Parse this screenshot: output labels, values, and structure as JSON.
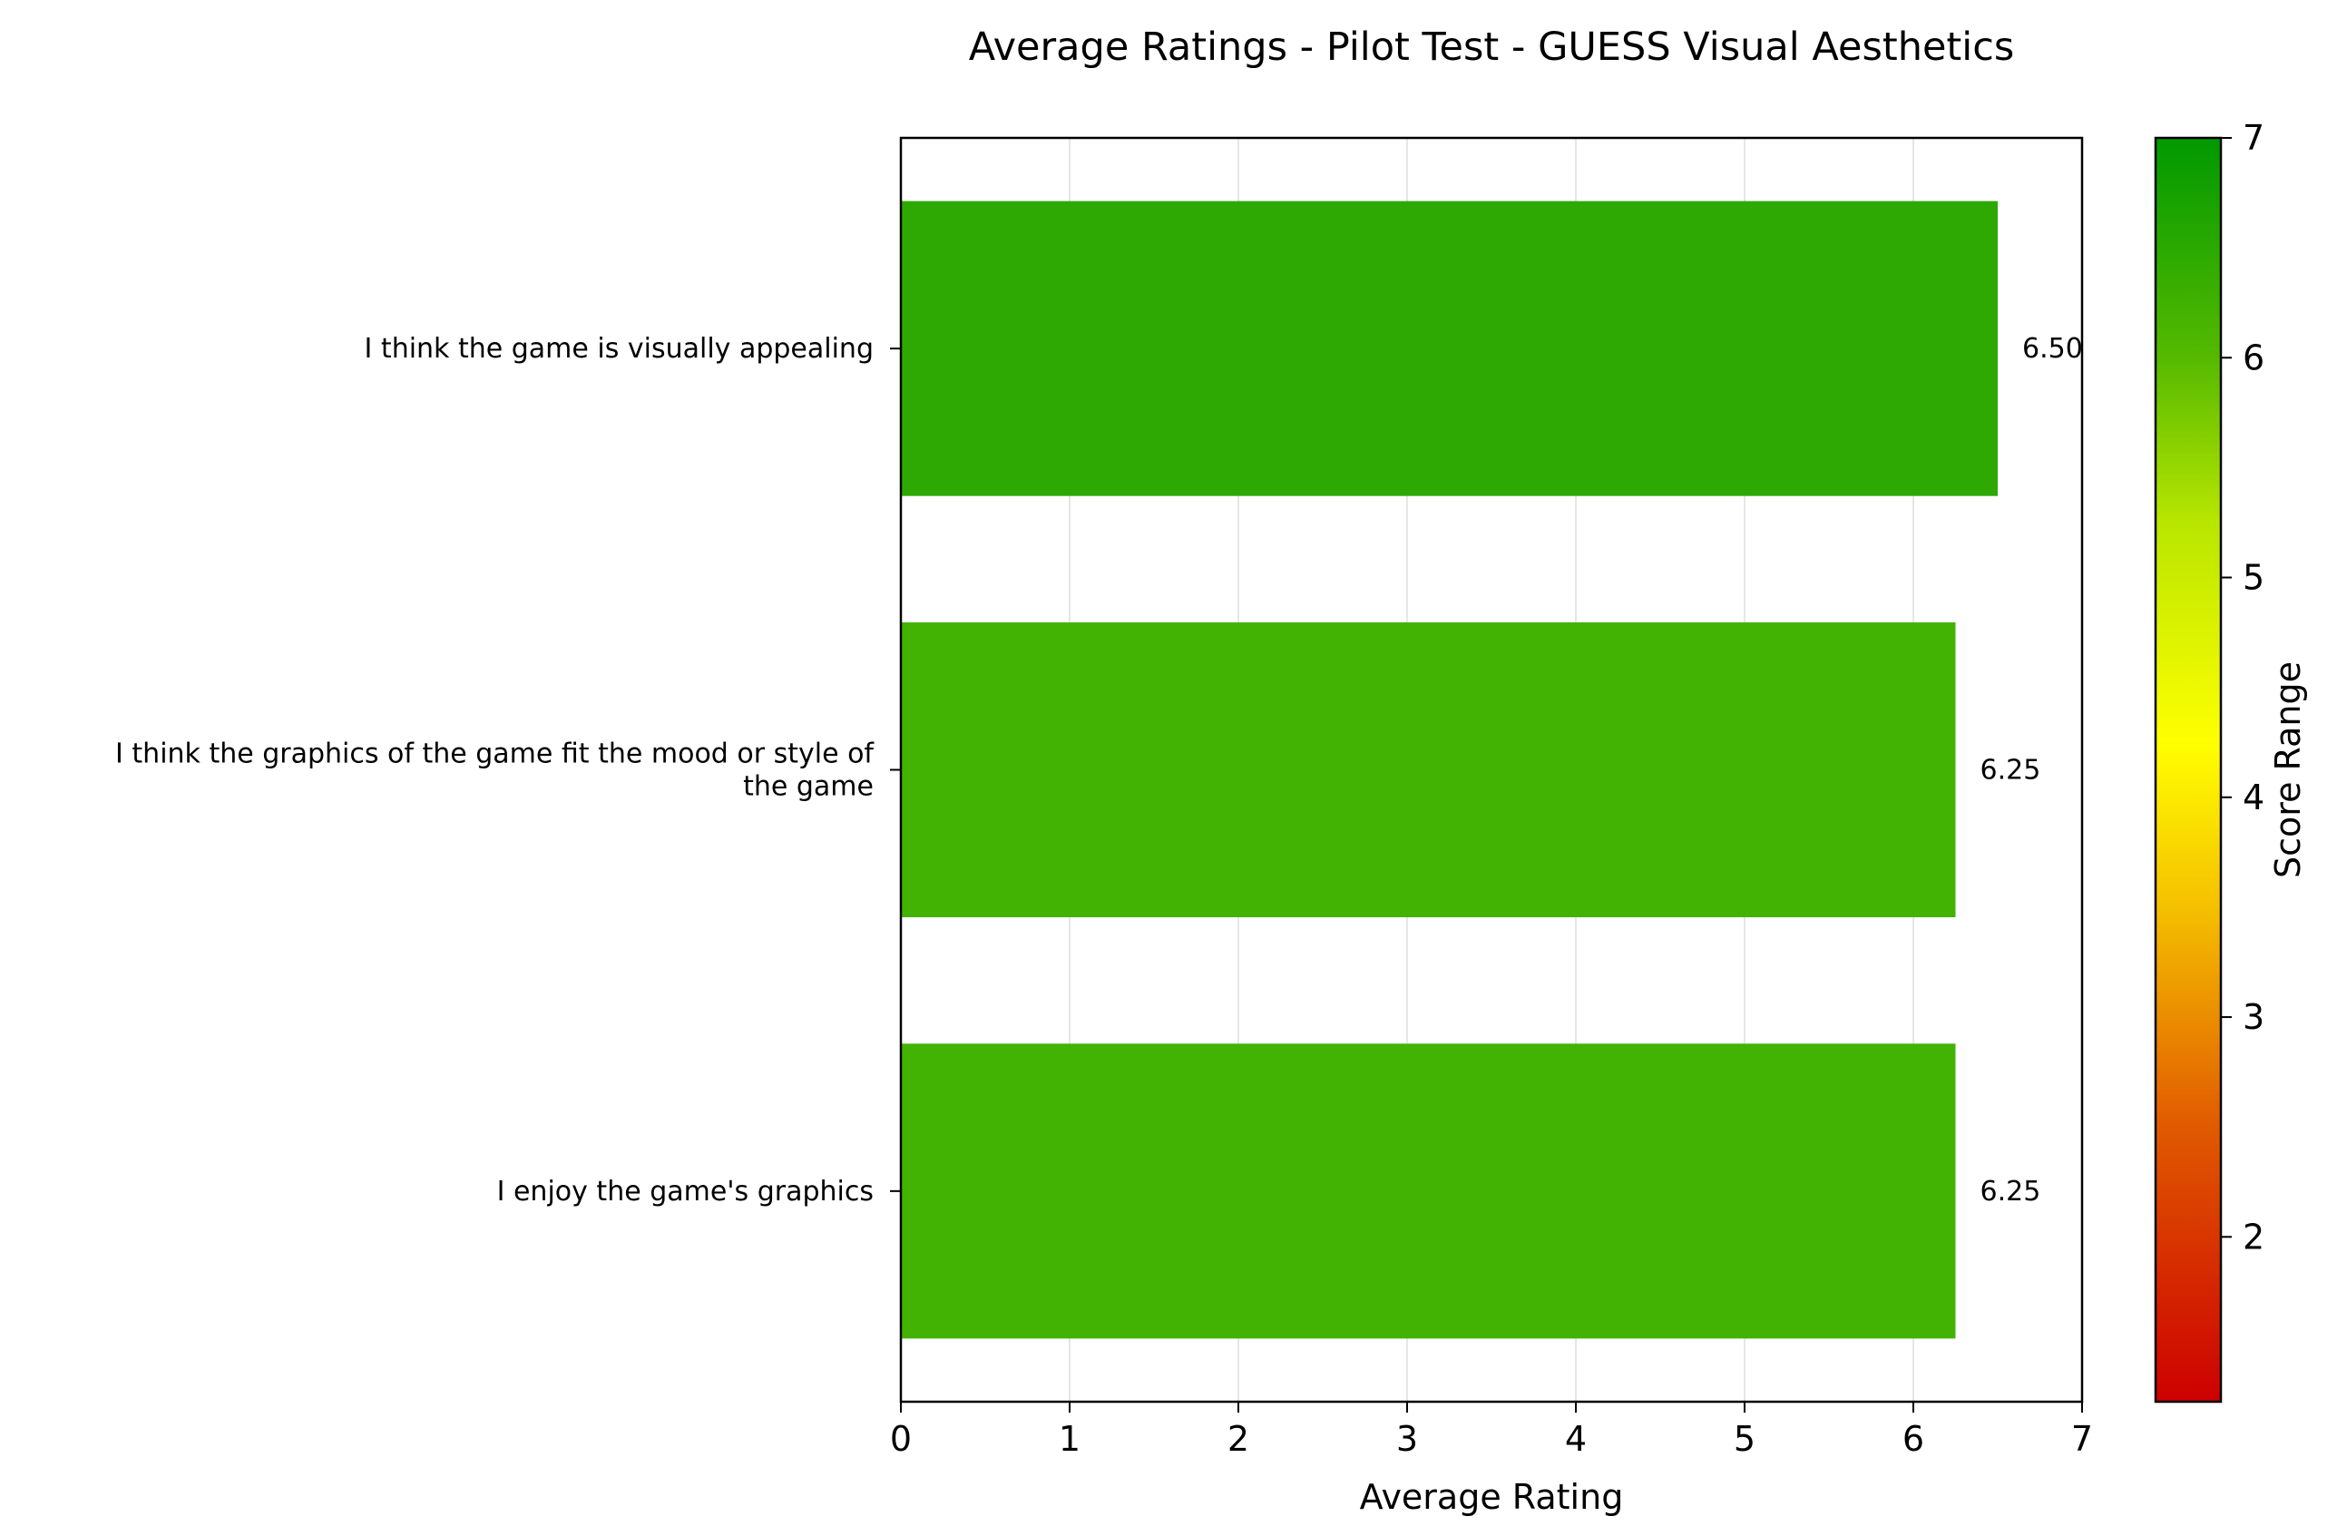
{
  "chart_data": {
    "type": "bar",
    "orientation": "horizontal",
    "title": "Average Ratings - Pilot Test - GUESS Visual Aesthetics",
    "xlabel": "Average Rating",
    "ylabel": "",
    "xlim": [
      0,
      7
    ],
    "xticks": [
      0,
      1,
      2,
      3,
      4,
      5,
      6,
      7
    ],
    "grid": "vertical",
    "categories": [
      [
        "I think the game is visually appealing"
      ],
      [
        "I think the graphics of the game fit the mood or style of",
        "the game"
      ],
      [
        "I enjoy the game's graphics"
      ]
    ],
    "values": [
      6.5,
      6.25,
      6.25
    ],
    "value_labels": [
      "6.50",
      "6.25",
      "6.25"
    ],
    "bar_colors": [
      "#2ea903",
      "#42b302",
      "#42b302"
    ],
    "colorbar": {
      "label": "Score Range",
      "range": [
        1.25,
        7
      ],
      "ticks": [
        2,
        3,
        4,
        5,
        6,
        7
      ],
      "colors": [
        {
          "value": 1.25,
          "color": "#cc0000"
        },
        {
          "value": 2.5,
          "color": "#e05a00"
        },
        {
          "value": 3.5,
          "color": "#f5c000"
        },
        {
          "value": 4.25,
          "color": "#ffff00"
        },
        {
          "value": 5.25,
          "color": "#b8e600"
        },
        {
          "value": 6.0,
          "color": "#55b900"
        },
        {
          "value": 7.0,
          "color": "#009900"
        }
      ]
    }
  }
}
